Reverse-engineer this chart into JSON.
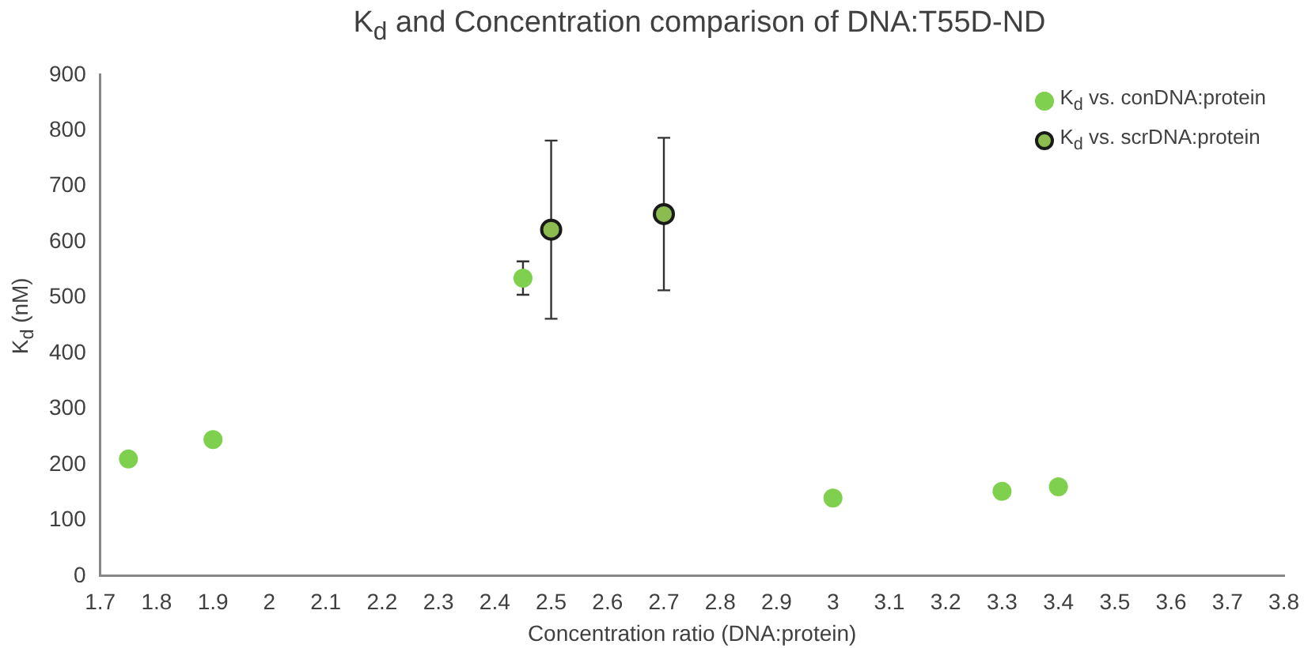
{
  "chart_data": {
    "type": "scatter",
    "title": "K$_{d}$ and Concentration comparison of DNA:T55D-ND",
    "xlabel": "Concentration ratio (DNA:protein)",
    "ylabel": "K$_{d}$ (nM)",
    "series": [
      {
        "name": "K$_{d}$ vs. conDNA:protein",
        "color": "#7ed04e",
        "x": [
          1.75,
          1.9,
          2.45,
          3.0,
          3.3,
          3.4
        ],
        "values": [
          210,
          245,
          535,
          140,
          152,
          160
        ],
        "errors": [
          null,
          null,
          30,
          null,
          null,
          null
        ]
      },
      {
        "name": "K$_{d}$ vs. scrDNA:protein",
        "color": "#8cbc50",
        "x": [
          2.5,
          2.7
        ],
        "values": [
          622,
          650
        ],
        "errors": [
          160,
          137
        ]
      }
    ],
    "xlim": [
      1.7,
      3.8
    ],
    "xticks": [
      1.7,
      1.8,
      1.9,
      2,
      2.1,
      2.2,
      2.3,
      2.4,
      2.5,
      2.6,
      2.7,
      2.8,
      2.9,
      3,
      3.1,
      3.2,
      3.3,
      3.4,
      3.5,
      3.6,
      3.7,
      3.8
    ],
    "ylim": [
      0,
      900
    ],
    "yticks": [
      0,
      100,
      200,
      300,
      400,
      500,
      600,
      700,
      800,
      900
    ],
    "grid": false,
    "legend": "top right",
    "marker": "circle"
  }
}
